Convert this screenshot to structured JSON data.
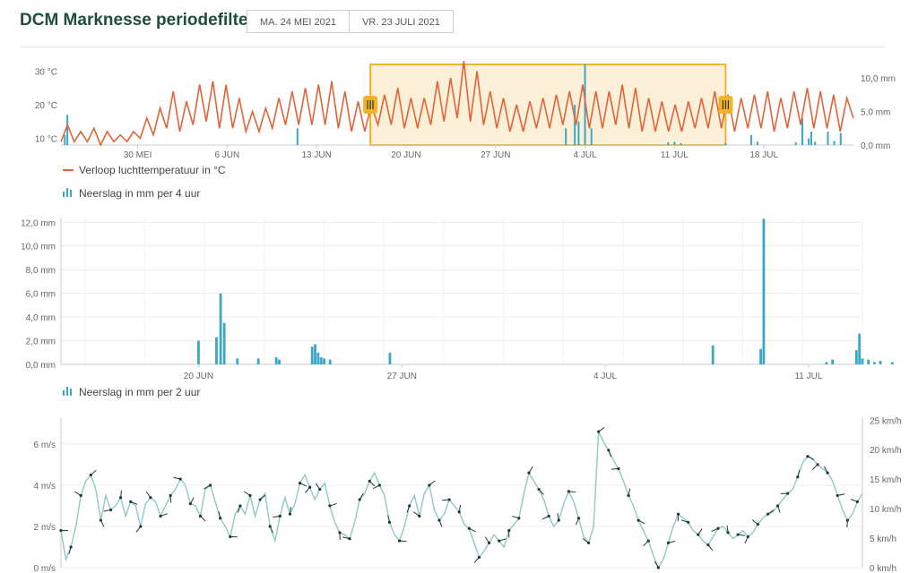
{
  "page": {
    "title": "DCM Marknesse periodefilter",
    "date_start": "MA. 24 MEI 2021",
    "date_end": "VR. 23 JULI 2021"
  },
  "colors": {
    "temperature": "#e06438",
    "precip": "#3aa6c8",
    "wind_line": "#8fc8c4",
    "wind_arrow": "#1f3a35",
    "selection_fill": "#fdf0d8",
    "selection_border": "#f0b429",
    "title": "#1f4e3d"
  },
  "legends": {
    "temperature": "Verloop luchttemperatuur in °C",
    "precip_4h": "Neerslag in mm per 4 uur",
    "precip_2h": "Neerslag in mm per 2 uur"
  },
  "navigator": {
    "handle_left_icon": "grip-icon",
    "handle_right_icon": "grip-icon"
  },
  "chart_data": [
    {
      "type": "line",
      "name": "overview",
      "x_tick_labels": [
        "30 MEI",
        "6 JUN",
        "13 JUN",
        "20 JUN",
        "27 JUN",
        "4 JUL",
        "11 JUL",
        "18 JUL"
      ],
      "y_left_ticks": [
        "10 °C",
        "20 °C",
        "30 °C"
      ],
      "y_right_ticks": [
        "0,0 mm",
        "5,0 mm",
        "10,0 mm"
      ],
      "ylim_left": [
        8,
        32
      ],
      "ylim_right": [
        0,
        12
      ],
      "selection": {
        "from": "17 JUN",
        "to": "16 JUL"
      },
      "series": [
        {
          "name": "Verloop luchttemperatuur in °C",
          "type": "line",
          "peaks": [
            14,
            12,
            13,
            12,
            11,
            12,
            16,
            19,
            24,
            21,
            26,
            27,
            26,
            22,
            18,
            19,
            22,
            24,
            25,
            26,
            27,
            24,
            21,
            20,
            23,
            25,
            22,
            22,
            27,
            28,
            33,
            30,
            24,
            22,
            20,
            21,
            22,
            23,
            24,
            26,
            24,
            24,
            26,
            25,
            22,
            21,
            20,
            21,
            22,
            24,
            23,
            22,
            23,
            24,
            22,
            24,
            25,
            24,
            23,
            22
          ],
          "troughs": [
            9,
            9,
            9,
            8,
            9,
            9,
            10,
            11,
            13,
            12,
            14,
            15,
            13,
            13,
            12,
            12,
            13,
            14,
            14,
            14,
            14,
            13,
            12,
            12,
            14,
            14,
            13,
            13,
            14,
            15,
            16,
            15,
            14,
            13,
            12,
            12,
            13,
            13,
            14,
            14,
            13,
            13,
            14,
            13,
            12,
            12,
            12,
            12,
            13,
            13,
            13,
            12,
            13,
            13,
            12,
            13,
            14,
            13,
            13,
            12
          ]
        },
        {
          "name": "Neerslag in mm per 4 uur",
          "type": "bar",
          "values": [
            [
              0.3,
              1.5
            ],
            [
              0.5,
              4.5
            ],
            [
              18.5,
              2.5
            ],
            [
              39.5,
              2.5
            ],
            [
              40.2,
              6
            ],
            [
              40.5,
              3.5
            ],
            [
              41,
              12
            ],
            [
              41.5,
              2.5
            ],
            [
              47.5,
              0.4
            ],
            [
              48,
              0.5
            ],
            [
              48.5,
              0.3
            ],
            [
              52,
              0.3
            ],
            [
              54,
              1.5
            ],
            [
              54.5,
              0.5
            ],
            [
              57.5,
              0.4
            ],
            [
              58,
              4
            ],
            [
              58.5,
              1
            ],
            [
              58.7,
              2
            ],
            [
              59,
              0.5
            ],
            [
              60,
              2
            ],
            [
              60.5,
              0.6
            ],
            [
              61,
              1.8
            ],
            [
              77.5,
              5.5
            ],
            [
              78,
              4.5
            ],
            [
              78.5,
              4.5
            ]
          ]
        }
      ]
    },
    {
      "type": "bar",
      "name": "Neerslag in mm per 4 uur",
      "x_tick_labels": [
        "20 JUN",
        "27 JUN",
        "4 JUL",
        "11 JUL"
      ],
      "y_ticks": [
        "0,0 mm",
        "2,0 mm",
        "4,0 mm",
        "6,0 mm",
        "8,0 mm",
        "10,0 mm",
        "12,0 mm"
      ],
      "ylim": [
        0,
        12.4
      ],
      "x_range_days": [
        16.6,
        30.0
      ],
      "values": [
        [
          18.9,
          2.0
        ],
        [
          19.2,
          2.3
        ],
        [
          19.27,
          6.0
        ],
        [
          19.33,
          3.5
        ],
        [
          19.55,
          0.5
        ],
        [
          19.9,
          0.5
        ],
        [
          20.2,
          0.6
        ],
        [
          20.25,
          0.4
        ],
        [
          20.8,
          1.5
        ],
        [
          20.85,
          1.7
        ],
        [
          20.9,
          1.0
        ],
        [
          20.95,
          0.6
        ],
        [
          21.0,
          0.5
        ],
        [
          21.1,
          0.4
        ],
        [
          22.1,
          1.0
        ],
        [
          27.5,
          1.6
        ],
        [
          28.3,
          1.3
        ],
        [
          28.35,
          12.3
        ],
        [
          29.4,
          0.2
        ],
        [
          29.5,
          0.4
        ],
        [
          29.9,
          1.2
        ],
        [
          29.95,
          2.6
        ],
        [
          30.0,
          0.5
        ],
        [
          30.1,
          0.4
        ],
        [
          30.2,
          0.2
        ],
        [
          30.3,
          0.3
        ],
        [
          30.5,
          0.2
        ]
      ]
    },
    {
      "type": "line",
      "name": "wind",
      "y_left_ticks": [
        "0 m/s",
        "2 m/s",
        "4 m/s",
        "6 m/s"
      ],
      "y_right_ticks": [
        "0 km/h",
        "5 km/h",
        "10 km/h",
        "15 km/h",
        "20 km/h",
        "25 km/h"
      ],
      "ylim_left": [
        0,
        7.3
      ],
      "ylim_right": [
        0,
        25.5
      ],
      "values": [
        1.8,
        0.4,
        1.0,
        2.0,
        3.5,
        4.2,
        4.5,
        3.8,
        2.3,
        3.5,
        2.8,
        3.0,
        3.4,
        2.5,
        3.2,
        3.0,
        2.0,
        3.1,
        3.4,
        3.2,
        2.5,
        3.0,
        3.5,
        3.8,
        4.3,
        4.0,
        3.1,
        3.0,
        2.5,
        3.8,
        4.0,
        3.2,
        2.4,
        2.0,
        1.5,
        2.6,
        3.0,
        2.6,
        3.5,
        2.5,
        3.3,
        3.6,
        2.0,
        1.3,
        2.5,
        3.4,
        2.6,
        3.1,
        4.1,
        4.5,
        3.9,
        3.3,
        3.8,
        4.1,
        3.0,
        2.2,
        1.7,
        1.6,
        1.4,
        2.2,
        3.3,
        3.6,
        4.2,
        4.6,
        4.0,
        3.5,
        2.2,
        1.6,
        1.3,
        2.0,
        3.0,
        3.5,
        2.5,
        3.6,
        4.0,
        2.8,
        2.3,
        2.6,
        3.3,
        3.0,
        2.7,
        2.1,
        1.9,
        1.2,
        0.5,
        0.8,
        1.2,
        1.6,
        1.3,
        1.0,
        1.8,
        2.1,
        2.4,
        3.6,
        4.6,
        4.2,
        3.8,
        3.3,
        2.5,
        2.0,
        2.3,
        3.1,
        3.7,
        3.2,
        2.4,
        1.5,
        1.2,
        2.0,
        6.6,
        6.1,
        5.7,
        5.2,
        4.8,
        4.2,
        3.5,
        3.0,
        2.3,
        1.8,
        1.3,
        0.6,
        0.0,
        0.4,
        1.2,
        2.0,
        2.6,
        2.4,
        2.2,
        1.8,
        1.6,
        1.3,
        1.1,
        1.5,
        1.9,
        2.0,
        1.7,
        1.4,
        1.6,
        1.8,
        1.5,
        1.7,
        2.1,
        2.4,
        2.6,
        2.7,
        3.0,
        3.3,
        3.6,
        3.8,
        4.4,
        5.1,
        5.4,
        5.3,
        5.0,
        4.8,
        4.6,
        4.2,
        3.5,
        2.8,
        2.3,
        2.6,
        3.2,
        3.6
      ]
    }
  ]
}
